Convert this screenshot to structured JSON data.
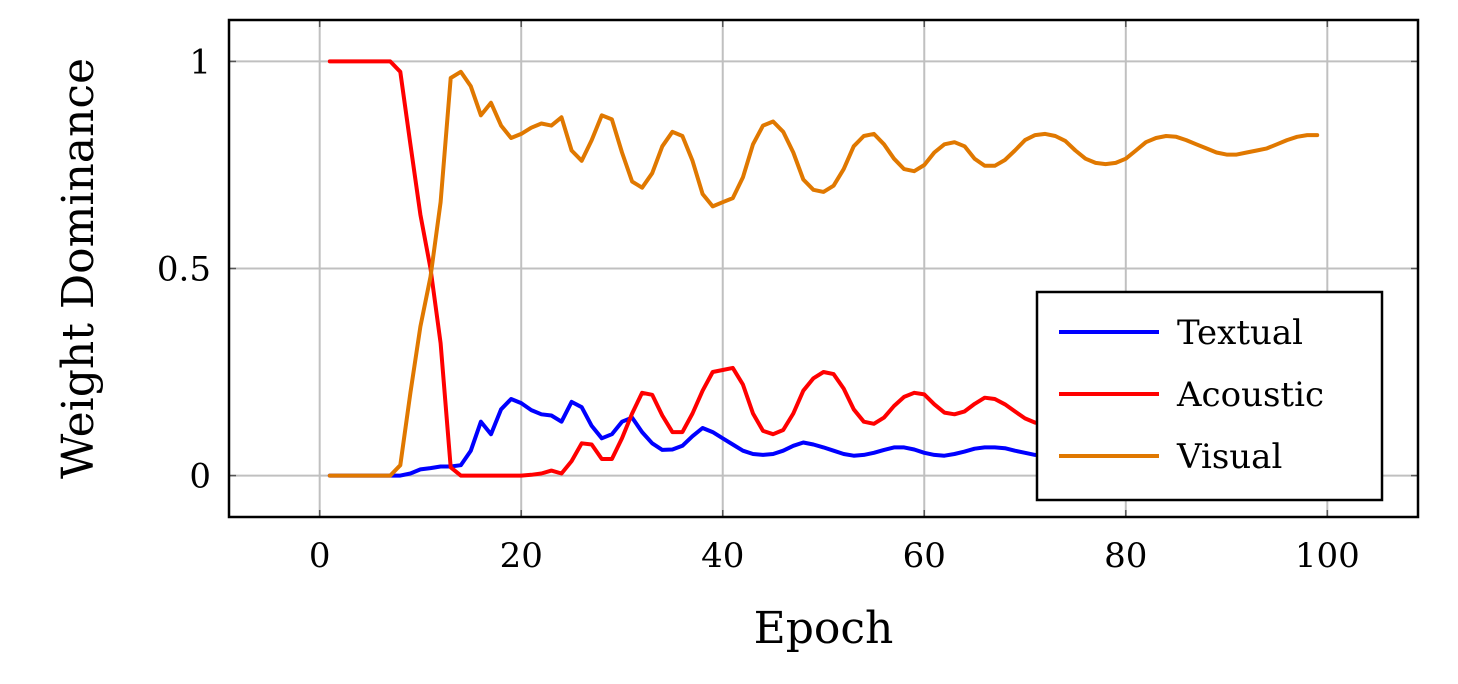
{
  "chart_data": {
    "type": "line",
    "xlabel": "Epoch",
    "ylabel": "Weight Dominance",
    "xlim": [
      -9,
      109
    ],
    "ylim": [
      -0.1,
      1.1
    ],
    "xticks": [
      0,
      20,
      40,
      60,
      80,
      100
    ],
    "yticks": [
      0,
      0.5,
      1
    ],
    "ytick_labels": [
      "0",
      "0.5",
      "1"
    ],
    "grid": true,
    "legend_position": "bottom-right",
    "x": [
      1,
      2,
      3,
      4,
      5,
      6,
      7,
      8,
      9,
      10,
      11,
      12,
      13,
      14,
      15,
      16,
      17,
      18,
      19,
      20,
      21,
      22,
      23,
      24,
      25,
      26,
      27,
      28,
      29,
      30,
      31,
      32,
      33,
      34,
      35,
      36,
      37,
      38,
      39,
      40,
      41,
      42,
      43,
      44,
      45,
      46,
      47,
      48,
      49,
      50,
      51,
      52,
      53,
      54,
      55,
      56,
      57,
      58,
      59,
      60,
      61,
      62,
      63,
      64,
      65,
      66,
      67,
      68,
      69,
      70,
      71,
      72,
      73,
      74,
      75,
      76,
      77,
      78,
      79,
      80,
      81,
      82,
      83,
      84,
      85,
      86,
      87,
      88,
      89,
      90,
      91,
      92,
      93,
      94,
      95,
      96,
      97,
      98,
      99
    ],
    "series": [
      {
        "name": "Textual",
        "color": "#0000ff",
        "values": [
          0,
          0,
          0,
          0,
          0,
          0,
          0,
          0,
          0.005,
          0.015,
          0.018,
          0.022,
          0.022,
          0.025,
          0.06,
          0.13,
          0.1,
          0.16,
          0.185,
          0.175,
          0.158,
          0.148,
          0.145,
          0.13,
          0.178,
          0.165,
          0.12,
          0.09,
          0.1,
          0.13,
          0.14,
          0.105,
          0.078,
          0.062,
          0.063,
          0.072,
          0.095,
          0.115,
          0.105,
          0.09,
          0.075,
          0.06,
          0.052,
          0.05,
          0.052,
          0.06,
          0.072,
          0.08,
          0.075,
          0.068,
          0.06,
          0.052,
          0.048,
          0.05,
          0.055,
          0.062,
          0.068,
          0.068,
          0.063,
          0.055,
          0.05,
          0.048,
          0.052,
          0.058,
          0.065,
          0.068,
          0.068,
          0.066,
          0.06,
          0.055,
          0.05,
          0.048,
          0.05,
          0.052,
          0.055,
          0.056,
          0.055,
          0.052,
          0.05,
          0.048,
          0.047,
          0.046,
          0.045,
          0.045,
          0.044,
          0.044,
          0.043,
          0.043,
          0.042,
          0.042,
          0.041,
          0.041,
          0.04,
          0.04,
          0.04,
          0.039,
          0.039,
          0.039,
          0.038
        ]
      },
      {
        "name": "Acoustic",
        "color": "#ff0000",
        "values": [
          1,
          1,
          1,
          1,
          1,
          1,
          1,
          0.975,
          0.8,
          0.63,
          0.5,
          0.32,
          0.02,
          0,
          0,
          0,
          0,
          0,
          0,
          0,
          0.002,
          0.005,
          0.012,
          0.005,
          0.035,
          0.078,
          0.075,
          0.04,
          0.04,
          0.09,
          0.15,
          0.2,
          0.195,
          0.145,
          0.105,
          0.105,
          0.15,
          0.205,
          0.25,
          0.255,
          0.26,
          0.22,
          0.15,
          0.108,
          0.1,
          0.11,
          0.15,
          0.205,
          0.235,
          0.25,
          0.245,
          0.21,
          0.16,
          0.13,
          0.125,
          0.14,
          0.168,
          0.19,
          0.2,
          0.196,
          0.172,
          0.152,
          0.148,
          0.155,
          0.173,
          0.188,
          0.185,
          0.172,
          0.155,
          0.138,
          0.128,
          0.125,
          0.125,
          0.125,
          0.124,
          0.123,
          0.122,
          0.121,
          0.12,
          0.119,
          0.118,
          0.117,
          0.116,
          0.116,
          0.115,
          0.115,
          0.114,
          0.114,
          0.113,
          0.113,
          0.112,
          0.112,
          0.111,
          0.111,
          0.11,
          0.11,
          0.11,
          0.109,
          0.109
        ]
      },
      {
        "name": "Visual",
        "color": "#e07800",
        "values": [
          0,
          0,
          0,
          0,
          0,
          0,
          0,
          0.025,
          0.2,
          0.36,
          0.48,
          0.66,
          0.96,
          0.975,
          0.94,
          0.87,
          0.9,
          0.845,
          0.815,
          0.825,
          0.84,
          0.85,
          0.845,
          0.865,
          0.785,
          0.76,
          0.81,
          0.87,
          0.86,
          0.78,
          0.71,
          0.695,
          0.73,
          0.795,
          0.83,
          0.82,
          0.76,
          0.68,
          0.65,
          0.66,
          0.67,
          0.72,
          0.8,
          0.845,
          0.855,
          0.83,
          0.78,
          0.715,
          0.69,
          0.685,
          0.7,
          0.74,
          0.795,
          0.82,
          0.825,
          0.8,
          0.765,
          0.74,
          0.735,
          0.75,
          0.78,
          0.8,
          0.805,
          0.795,
          0.765,
          0.748,
          0.748,
          0.762,
          0.785,
          0.81,
          0.822,
          0.825,
          0.82,
          0.808,
          0.785,
          0.765,
          0.755,
          0.752,
          0.755,
          0.765,
          0.785,
          0.805,
          0.815,
          0.82,
          0.818,
          0.81,
          0.8,
          0.79,
          0.78,
          0.775,
          0.775,
          0.78,
          0.785,
          0.79,
          0.8,
          0.81,
          0.818,
          0.822,
          0.822
        ]
      }
    ]
  }
}
